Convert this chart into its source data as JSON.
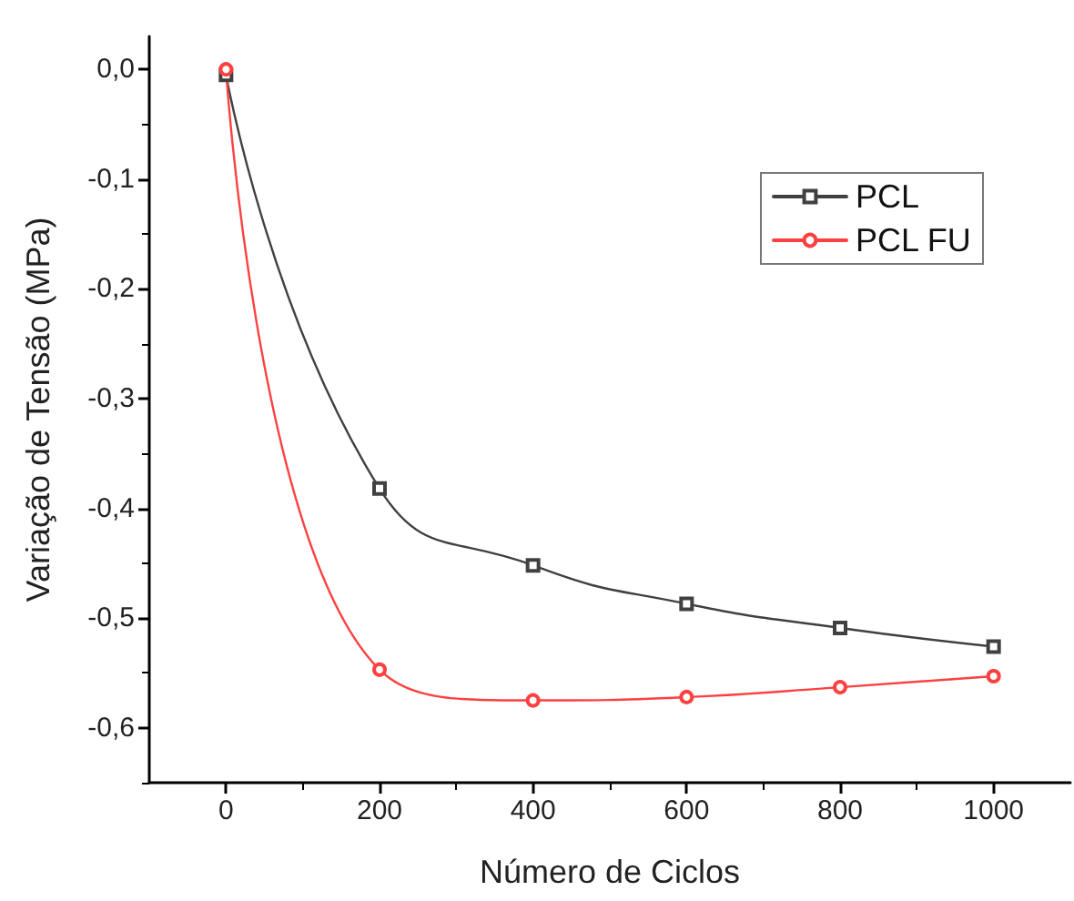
{
  "chart_data": {
    "type": "line",
    "xlabel": "Número de Ciclos",
    "ylabel": "Variação de Tensão (MPa)",
    "x": [
      0,
      200,
      400,
      600,
      800,
      1000
    ],
    "series": [
      {
        "name": "PCL",
        "color": "#404040",
        "marker": "square",
        "values": [
          -0.005,
          -0.382,
          -0.452,
          -0.487,
          -0.509,
          -0.526
        ]
      },
      {
        "name": "PCL FU",
        "color": "#ff4040",
        "marker": "circle",
        "values": [
          0.0,
          -0.547,
          -0.575,
          -0.572,
          -0.563,
          -0.553
        ]
      }
    ],
    "xlim": [
      -100,
      1100
    ],
    "xticks": [
      0,
      200,
      400,
      600,
      800,
      1000
    ],
    "ylim": [
      -0.65,
      0.03
    ],
    "yticks": [
      {
        "value": 0,
        "label": "0,0"
      },
      {
        "value": -0.1,
        "label": "-0,1"
      },
      {
        "value": -0.2,
        "label": "-0,2"
      },
      {
        "value": -0.3,
        "label": "-0,3"
      },
      {
        "value": -0.4,
        "label": "-0,4"
      },
      {
        "value": -0.5,
        "label": "-0,5"
      },
      {
        "value": -0.6,
        "label": "-0,6"
      }
    ],
    "grid": false,
    "legend": "top right",
    "line_style": "solid"
  }
}
